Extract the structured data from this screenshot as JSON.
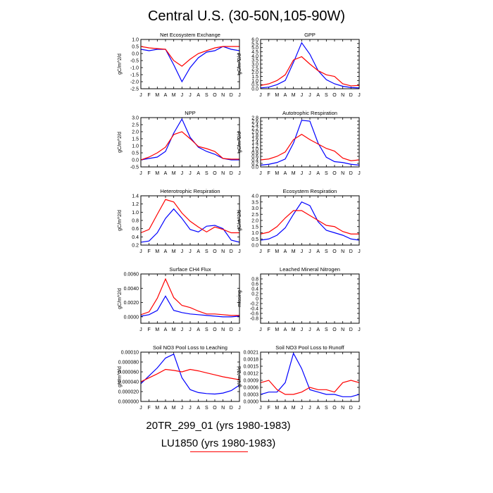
{
  "title": "Central U.S. (30-50N,105-90W)",
  "legend": {
    "run1": "20TR_299_01 (yrs 1980-1983)",
    "run2": "LU1850 (yrs 1980-1983)"
  },
  "colors": {
    "run1": "#0000ff",
    "run2": "#ff0000"
  },
  "months": [
    "J",
    "F",
    "M",
    "A",
    "M",
    "J",
    "J",
    "A",
    "S",
    "O",
    "N",
    "D",
    "J"
  ],
  "chart_data": [
    {
      "type": "line",
      "title": "Net Ecosystem Exchange",
      "ylabel": "gC/m^2/d",
      "ylim": [
        -2.5,
        1.0
      ],
      "yticks": [
        "1.0",
        "0.5",
        "0.0",
        "-0.5",
        "-1.0",
        "-1.5",
        "-2.0",
        "-2.5"
      ],
      "ytick_values": [
        1.0,
        0.5,
        0.0,
        -0.5,
        -1.0,
        -1.5,
        -2.0,
        -2.5
      ],
      "series": [
        {
          "values": [
            0.3,
            0.2,
            0.3,
            0.3,
            -0.8,
            -2.0,
            -1.0,
            -0.3,
            0.1,
            0.2,
            0.5,
            0.3,
            0.2
          ]
        },
        {
          "values": [
            0.5,
            0.4,
            0.35,
            0.3,
            -0.5,
            -0.9,
            -0.4,
            0.0,
            0.2,
            0.4,
            0.5,
            0.5,
            0.5
          ]
        }
      ]
    },
    {
      "type": "line",
      "title": "GPP",
      "ylabel": "gC/m^2/d",
      "ylim": [
        0,
        6
      ],
      "yticks": [
        "0.0",
        "0.5",
        "1.0",
        "1.5",
        "2.0",
        "2.5",
        "3.0",
        "3.5",
        "4.0",
        "4.5",
        "5.0",
        "5.5",
        "6.0"
      ],
      "ytick_values": [
        0,
        0.5,
        1.0,
        1.5,
        2.0,
        2.5,
        3.0,
        3.5,
        4.0,
        4.5,
        5.0,
        5.5,
        6.0
      ],
      "series": [
        {
          "values": [
            0.1,
            0.2,
            0.5,
            1.0,
            3.2,
            5.6,
            4.2,
            2.2,
            1.1,
            0.6,
            0.3,
            0.15,
            0.1
          ]
        },
        {
          "values": [
            0.4,
            0.6,
            1.0,
            1.7,
            3.5,
            3.9,
            3.0,
            2.2,
            1.7,
            1.5,
            0.6,
            0.35,
            0.4
          ]
        }
      ]
    },
    {
      "type": "line",
      "title": "NPP",
      "ylabel": "gC/m^2/d",
      "ylim": [
        -0.5,
        3.0
      ],
      "yticks": [
        "3.0",
        "2.5",
        "2.0",
        "1.5",
        "1.0",
        "0.5",
        "0.0",
        "-0.5"
      ],
      "ytick_values": [
        3.0,
        2.5,
        2.0,
        1.5,
        1.0,
        0.5,
        0.0,
        -0.5
      ],
      "series": [
        {
          "values": [
            0.0,
            0.1,
            0.2,
            0.6,
            1.9,
            2.9,
            1.6,
            0.9,
            0.6,
            0.4,
            0.1,
            0.0,
            0.0
          ]
        },
        {
          "values": [
            0.0,
            0.2,
            0.5,
            0.9,
            1.8,
            2.0,
            1.5,
            0.95,
            0.8,
            0.6,
            0.1,
            0.05,
            0.05
          ]
        }
      ]
    },
    {
      "type": "line",
      "title": "Autotrophic Respiration",
      "ylabel": "gC/m^2/d",
      "ylim": [
        0,
        2.8
      ],
      "yticks": [
        "0.0",
        "0.2",
        "0.4",
        "0.6",
        "0.8",
        "1.0",
        "1.2",
        "1.4",
        "1.6",
        "1.8",
        "2.0",
        "2.2",
        "2.4",
        "2.6",
        "2.8"
      ],
      "ytick_values": [
        0,
        0.2,
        0.4,
        0.6,
        0.8,
        1.0,
        1.2,
        1.4,
        1.6,
        1.8,
        2.0,
        2.2,
        2.4,
        2.6,
        2.8
      ],
      "series": [
        {
          "values": [
            0.1,
            0.15,
            0.25,
            0.45,
            1.35,
            2.65,
            2.6,
            1.35,
            0.55,
            0.3,
            0.25,
            0.15,
            0.1
          ]
        },
        {
          "values": [
            0.4,
            0.45,
            0.6,
            0.85,
            1.55,
            1.85,
            1.55,
            1.3,
            1.05,
            0.9,
            0.5,
            0.35,
            0.4
          ]
        }
      ]
    },
    {
      "type": "line",
      "title": "Heterotrophic Respiration",
      "ylabel": "gC/m^2/d",
      "ylim": [
        0.2,
        1.4
      ],
      "yticks": [
        "1.4",
        "1.2",
        "1.0",
        "0.8",
        "0.6",
        "0.4",
        "0.2"
      ],
      "ytick_values": [
        1.4,
        1.2,
        1.0,
        0.8,
        0.6,
        0.4,
        0.2
      ],
      "series": [
        {
          "values": [
            0.27,
            0.3,
            0.5,
            0.85,
            1.08,
            0.85,
            0.58,
            0.52,
            0.66,
            0.68,
            0.6,
            0.32,
            0.27
          ]
        },
        {
          "values": [
            0.5,
            0.58,
            0.95,
            1.31,
            1.25,
            0.98,
            0.78,
            0.64,
            0.52,
            0.64,
            0.58,
            0.5,
            0.5
          ]
        }
      ]
    },
    {
      "type": "line",
      "title": "Ecosystem Respiration",
      "ylabel": "gC/m^2/d",
      "ylim": [
        0,
        4.0
      ],
      "yticks": [
        "0.0",
        "0.5",
        "1.0",
        "1.5",
        "2.0",
        "2.5",
        "3.0",
        "3.5",
        "4.0"
      ],
      "ytick_values": [
        0,
        0.5,
        1.0,
        1.5,
        2.0,
        2.5,
        3.0,
        3.5,
        4.0
      ],
      "series": [
        {
          "values": [
            0.4,
            0.5,
            0.8,
            1.4,
            2.5,
            3.5,
            3.2,
            1.9,
            1.2,
            1.0,
            0.8,
            0.5,
            0.4
          ]
        },
        {
          "values": [
            0.9,
            1.05,
            1.5,
            2.2,
            2.8,
            2.8,
            2.4,
            2.0,
            1.6,
            1.5,
            1.1,
            0.9,
            0.9
          ]
        }
      ]
    },
    {
      "type": "line",
      "title": "Surface CH4 Flux",
      "ylabel": "gC/m^2/d",
      "ylim": [
        -0.0009,
        0.006
      ],
      "yticks": [
        "0.0060",
        "0.0040",
        "0.0020",
        "0.0000"
      ],
      "ytick_values": [
        0.006,
        0.004,
        0.002,
        0.0
      ],
      "series": [
        {
          "values": [
            0.0001,
            0.0003,
            0.0009,
            0.0029,
            0.0009,
            0.0006,
            0.0004,
            0.0003,
            0.0002,
            0.0001,
            0.0,
            0.0,
            0.0001
          ]
        },
        {
          "values": [
            0.0003,
            0.0007,
            0.0026,
            0.0053,
            0.0027,
            0.0016,
            0.0013,
            0.0008,
            0.0004,
            0.0004,
            0.0003,
            0.0002,
            0.0002
          ]
        }
      ]
    },
    {
      "type": "line",
      "title": "Leached Mineral Nitrogen",
      "ylabel": "missing",
      "ylim": [
        -1.0,
        1.0
      ],
      "yticks": [
        "0.8",
        "0.6",
        "0.4",
        "0.2",
        "0",
        "-0.2",
        "-0.4",
        "-0.6",
        "-0.8"
      ],
      "ytick_values": [
        0.8,
        0.6,
        0.4,
        0.2,
        0,
        -0.2,
        -0.4,
        -0.6,
        -0.8
      ],
      "series": []
    },
    {
      "type": "line",
      "title": "Soil NO3 Pool Loss to Leaching",
      "ylabel": "gN/m^2/d",
      "ylim": [
        0,
        0.0001
      ],
      "yticks": [
        "0.00010",
        "0.000080",
        "0.000060",
        "0.000040",
        "0.000020",
        "0.000000"
      ],
      "ytick_values": [
        0.0001,
        8e-05,
        6e-05,
        4e-05,
        2e-05,
        0.0
      ],
      "series": [
        {
          "values": [
            3.6e-05,
            5.2e-05,
            6.8e-05,
            8.8e-05,
            9.6e-05,
            4.8e-05,
            2.4e-05,
            1.8e-05,
            1.6e-05,
            1.5e-05,
            1.7e-05,
            2.2e-05,
            3.3e-05
          ]
        },
        {
          "values": [
            4e-05,
            4.8e-05,
            5.6e-05,
            6.5e-05,
            6.3e-05,
            6e-05,
            6.5e-05,
            6.2e-05,
            5.8e-05,
            5.4e-05,
            5e-05,
            4.7e-05,
            4.4e-05
          ]
        }
      ]
    },
    {
      "type": "line",
      "title": "Soil NO3 Pool Loss to Runoff",
      "ylabel": "gN/m^2/d",
      "ylim": [
        0,
        0.0021
      ],
      "yticks": [
        "0.0021",
        "0.0018",
        "0.0015",
        "0.0012",
        "0.0009",
        "0.0006",
        "0.0003",
        "0.0000"
      ],
      "ytick_values": [
        0.0021,
        0.0018,
        0.0015,
        0.0012,
        0.0009,
        0.0006,
        0.0003,
        0.0
      ],
      "series": [
        {
          "values": [
            0.0003,
            0.0004,
            0.0004,
            0.0008,
            0.00205,
            0.0014,
            0.0005,
            0.0004,
            0.0003,
            0.0003,
            0.0002,
            0.0002,
            0.0003
          ]
        },
        {
          "values": [
            0.0008,
            0.0009,
            0.0005,
            0.0003,
            0.0003,
            0.0004,
            0.0006,
            0.0005,
            0.0005,
            0.0004,
            0.0008,
            0.0009,
            0.0008
          ]
        }
      ]
    }
  ]
}
